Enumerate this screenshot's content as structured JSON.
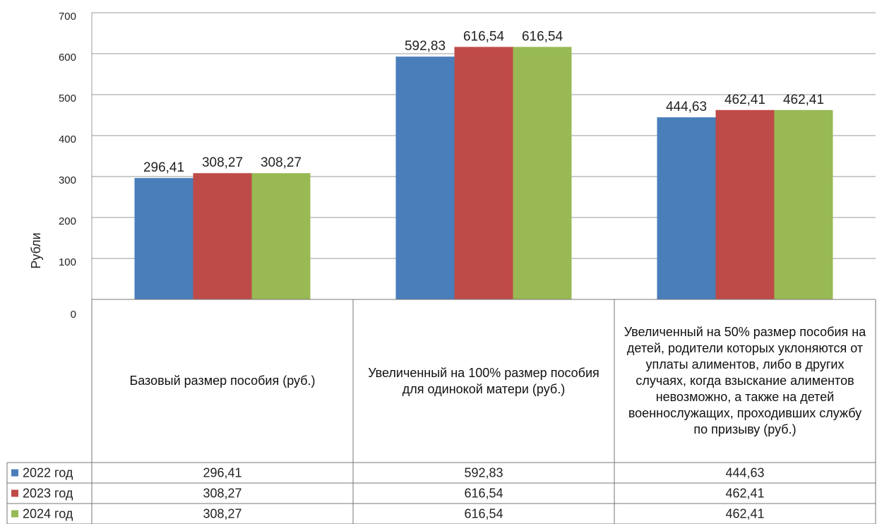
{
  "chart_data": {
    "type": "bar",
    "y_label": "Рубли",
    "categories": [
      "Базовый размер пособия (руб.)",
      "Увеличенный на 100% размер пособия для одинокой матери (руб.)",
      "Увеличенный на 50% размер пособия на детей, родители которых уклоняются от уплаты алиментов, либо в других случаях, когда взыскание алиментов невозможно, а также на детей военнослужащих, проходивших службу по призыву (руб.)"
    ],
    "series": [
      {
        "name": "2022 год",
        "color": "#4a7ebb",
        "values": [
          296.41,
          592.83,
          444.63
        ],
        "value_labels": [
          "296,41",
          "592,83",
          "444,63"
        ]
      },
      {
        "name": "2023 год",
        "color": "#be4b48",
        "values": [
          308.27,
          616.54,
          462.41
        ],
        "value_labels": [
          "308,27",
          "616,54",
          "462,41"
        ]
      },
      {
        "name": "2024 год",
        "color": "#98b954",
        "values": [
          308.27,
          616.54,
          462.41
        ],
        "value_labels": [
          "308,27",
          "616,54",
          "462,41"
        ]
      }
    ],
    "ylim": [
      0,
      700
    ],
    "yticks": [
      0,
      100,
      200,
      300,
      400,
      500,
      600,
      700
    ],
    "grid": true
  }
}
